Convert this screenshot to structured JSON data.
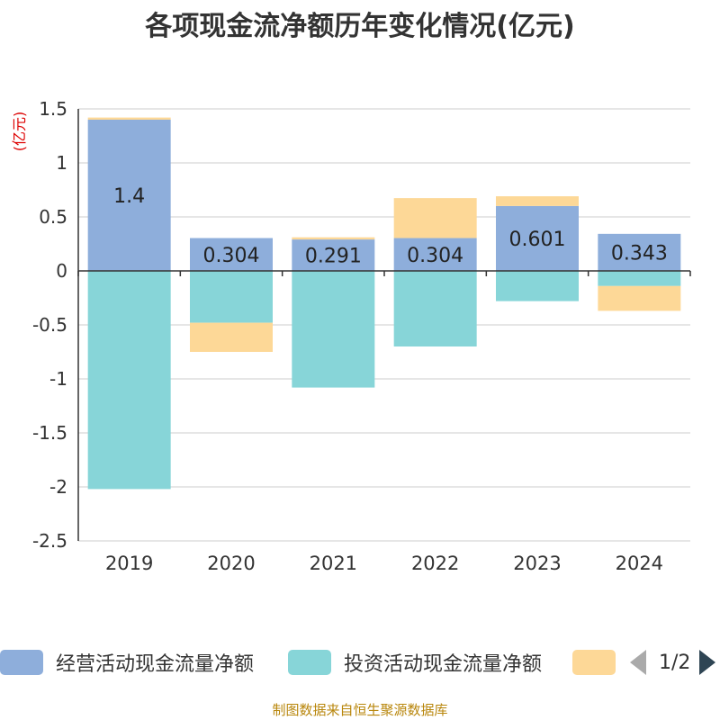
{
  "chart_data": {
    "type": "bar",
    "stacked": true,
    "title": "各项现金流净额历年变化情况(亿元)",
    "unit_label": "(亿元)",
    "categories": [
      "2019",
      "2020",
      "2021",
      "2022",
      "2023",
      "2024"
    ],
    "ylim": [
      -2.5,
      1.5
    ],
    "yticks": [
      1.5,
      1,
      0.5,
      0,
      -0.5,
      -1,
      -1.5,
      -2,
      -2.5
    ],
    "ytick_labels": [
      "1.5",
      "1",
      "0.5",
      "0",
      "-0.5",
      "-1",
      "-1.5",
      "-2",
      "-2.5"
    ],
    "grid": true,
    "series": [
      {
        "name": "经营活动现金流量净额",
        "color": "#8eaedb",
        "values": [
          1.4,
          0.304,
          0.291,
          0.304,
          0.601,
          0.343
        ],
        "labels": [
          "1.4",
          "0.304",
          "0.291",
          "0.304",
          "0.601",
          "0.343"
        ]
      },
      {
        "name": "投资活动现金流量净额",
        "color": "#87d5d8",
        "values": [
          -2.02,
          -0.48,
          -1.08,
          -0.7,
          -0.28,
          -0.14
        ]
      },
      {
        "name": "",
        "color": "#fdd897",
        "values": [
          0.02,
          -0.27,
          0.02,
          0.37,
          0.09,
          -0.23
        ]
      }
    ],
    "legend": {
      "position": "bottom",
      "page": "1/2"
    },
    "source": "制图数据来自恒生聚源数据库"
  }
}
